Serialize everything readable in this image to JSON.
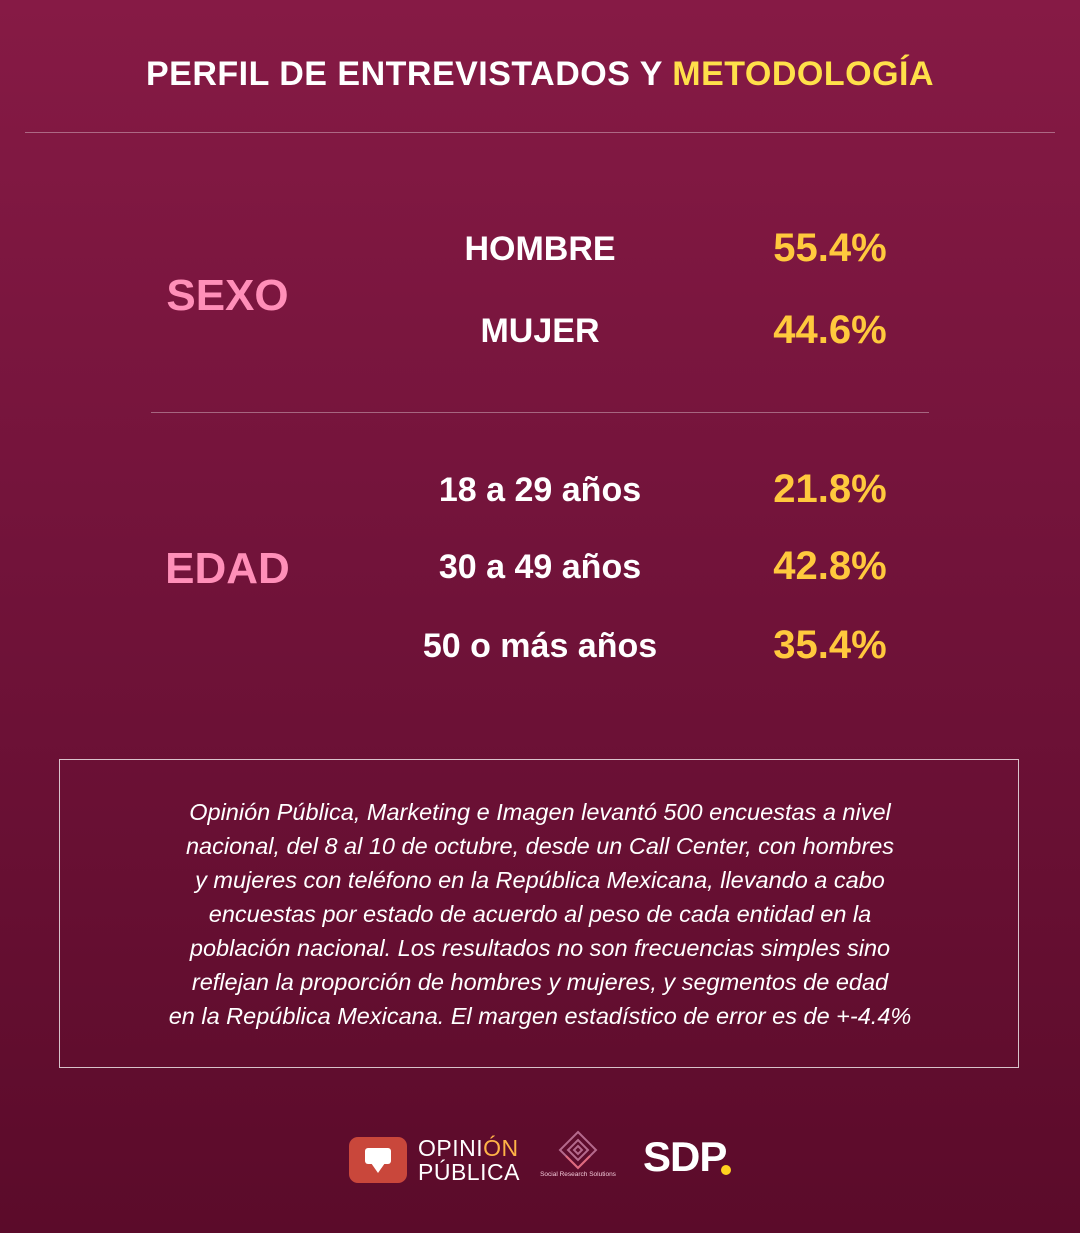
{
  "header": {
    "title_main": "PERFIL DE ENTREVISTADOS Y",
    "title_highlight": "METODOLOGÍA"
  },
  "sexo": {
    "label": "SEXO",
    "rows": [
      {
        "label": "HOMBRE",
        "value": "55.4%"
      },
      {
        "label": "MUJER",
        "value": "44.6%"
      }
    ]
  },
  "edad": {
    "label": "EDAD",
    "rows": [
      {
        "label": "18 a 29 años",
        "value": "21.8%"
      },
      {
        "label": "30 a 49 años",
        "value": "42.8%"
      },
      {
        "label": "50 o más años",
        "value": "35.4%"
      }
    ]
  },
  "methodology": {
    "lines": [
      "Opinión Pública, Marketing e Imagen levantó 500 encuestas a nivel",
      "nacional, del 8 al 10 de octubre, desde un Call Center, con hombres",
      "y mujeres con teléfono en la República Mexicana, llevando a cabo",
      "encuestas por estado de acuerdo al peso de cada entidad en la",
      "población nacional. Los resultados no son frecuencias simples sino",
      "reflejan la proporción de hombres y mujeres, y segmentos de edad",
      "en la República Mexicana. El margen estadístico de error es de +-4.4%"
    ]
  },
  "footer": {
    "op_logo_line1_a": "OPINI",
    "op_logo_line1_b": "ÓN",
    "op_logo_line2": "PÚBLICA",
    "srs_name": "Social Research Solutions",
    "sdp_text": "SDP"
  },
  "colors": {
    "background_top": "#861a45",
    "background_bottom": "#5b0b2a",
    "highlight_yellow": "#ffe04a",
    "category_pink": "#ff8fb8",
    "value_gold": "#ffc93d"
  }
}
